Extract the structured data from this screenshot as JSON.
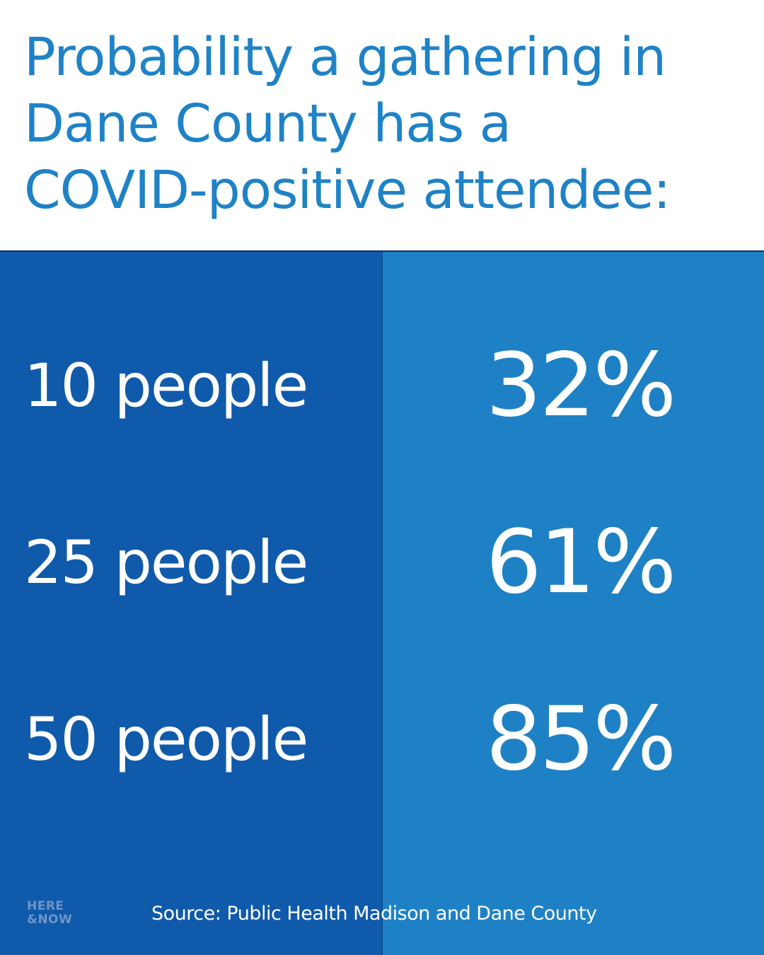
{
  "title": {
    "line1": "Probability a gathering in",
    "line2": "Dane County has a",
    "line3": "COVID-positive attendee:"
  },
  "rows": [
    {
      "label": "10 people",
      "value": "32%"
    },
    {
      "label": "25 people",
      "value": "61%"
    },
    {
      "label": "50 people",
      "value": "85%"
    }
  ],
  "source": "Source: Public Health Madison and Dane County",
  "logo": {
    "line1": "HERE",
    "line2": "&NOW"
  },
  "colors": {
    "title": "#1f82c6",
    "left_panel": "#105aab",
    "right_panel": "#1f81c5",
    "text_on_panel": "#ffffff"
  }
}
